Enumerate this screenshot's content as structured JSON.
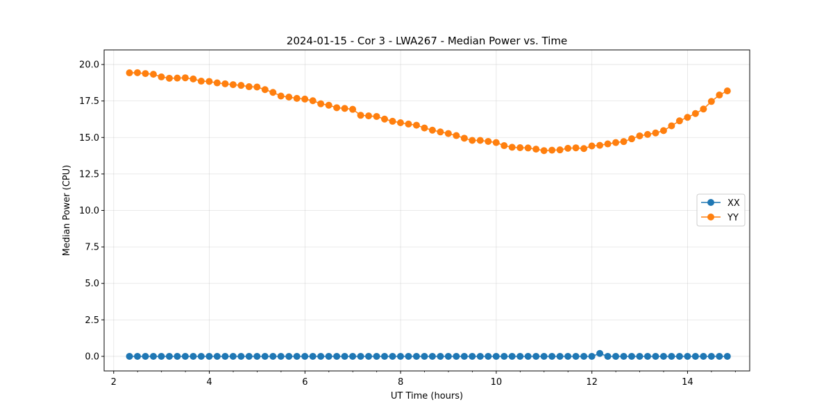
{
  "chart_data": {
    "type": "line",
    "title": "2024-01-15 - Cor 3 - LWA267 - Median Power vs. Time",
    "xlabel": "UT Time (hours)",
    "ylabel": "Median Power (CPU)",
    "xlim": [
      1.8,
      15.3
    ],
    "ylim": [
      -1.0,
      21.0
    ],
    "xticks": [
      2,
      4,
      6,
      8,
      10,
      12,
      14
    ],
    "xtick_labels": [
      "2",
      "4",
      "6",
      "8",
      "10",
      "12",
      "14"
    ],
    "yticks": [
      0.0,
      2.5,
      5.0,
      7.5,
      10.0,
      12.5,
      15.0,
      17.5,
      20.0
    ],
    "ytick_labels": [
      "0.0",
      "2.5",
      "5.0",
      "7.5",
      "10.0",
      "12.5",
      "15.0",
      "17.5",
      "20.0"
    ],
    "grid": true,
    "legend_position": "center-right",
    "x_start": 2.33,
    "x_step": 0.1667,
    "series": [
      {
        "name": "XX",
        "color": "#1f77b4",
        "values": [
          0.0,
          0.0,
          0.0,
          0.0,
          0.0,
          0.0,
          0.0,
          0.0,
          0.0,
          0.0,
          0.0,
          0.0,
          0.0,
          0.0,
          0.0,
          0.0,
          0.0,
          0.0,
          0.0,
          0.0,
          0.0,
          0.0,
          0.0,
          0.0,
          0.0,
          0.0,
          0.0,
          0.0,
          0.0,
          0.0,
          0.0,
          0.0,
          0.0,
          0.0,
          0.0,
          0.0,
          0.0,
          0.0,
          0.0,
          0.0,
          0.0,
          0.0,
          0.0,
          0.0,
          0.0,
          0.0,
          0.0,
          0.0,
          0.0,
          0.0,
          0.0,
          0.0,
          0.0,
          0.0,
          0.0,
          0.0,
          0.0,
          0.0,
          0.0,
          0.2,
          0.0,
          0.0,
          0.0,
          0.0,
          0.0,
          0.0,
          0.0,
          0.0,
          0.0,
          0.0,
          0.0,
          0.0,
          0.0,
          0.0,
          0.0,
          0.0
        ]
      },
      {
        "name": "YY",
        "color": "#ff7f0e",
        "values": [
          19.43,
          19.44,
          19.38,
          19.33,
          19.15,
          19.06,
          19.07,
          19.09,
          19.01,
          18.86,
          18.84,
          18.74,
          18.68,
          18.62,
          18.57,
          18.48,
          18.46,
          18.28,
          18.09,
          17.84,
          17.77,
          17.68,
          17.63,
          17.52,
          17.31,
          17.21,
          17.04,
          16.99,
          16.93,
          16.52,
          16.48,
          16.44,
          16.26,
          16.11,
          16.01,
          15.92,
          15.84,
          15.65,
          15.5,
          15.38,
          15.27,
          15.13,
          14.95,
          14.8,
          14.8,
          14.73,
          14.65,
          14.44,
          14.33,
          14.3,
          14.28,
          14.2,
          14.1,
          14.13,
          14.15,
          14.26,
          14.29,
          14.24,
          14.42,
          14.46,
          14.56,
          14.65,
          14.72,
          14.91,
          15.11,
          15.21,
          15.31,
          15.47,
          15.8,
          16.14,
          16.38,
          16.64,
          16.95,
          17.47,
          17.91,
          18.19
        ]
      }
    ]
  }
}
